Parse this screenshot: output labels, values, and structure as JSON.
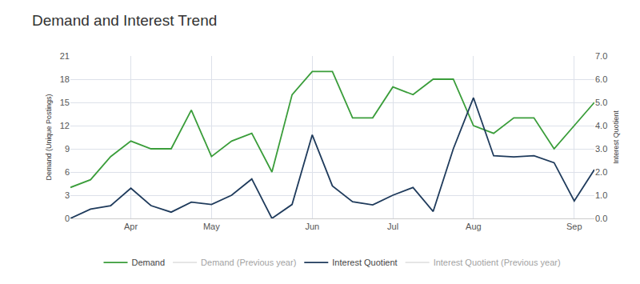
{
  "chart_data": {
    "type": "line",
    "title": "Demand and Interest Trend",
    "y_label": "Demand (Unique Postings)",
    "y2_label": "Interest Quotient",
    "categories": [
      null,
      null,
      null,
      "Apr",
      null,
      null,
      null,
      "May",
      null,
      null,
      null,
      null,
      "Jun",
      null,
      null,
      null,
      "Jul",
      null,
      null,
      null,
      "Aug",
      null,
      null,
      null,
      null,
      "Sep",
      null
    ],
    "series": [
      {
        "name": "Demand",
        "color": "#3a9d3a",
        "axis": "y",
        "values": [
          4,
          5,
          8,
          10,
          9,
          9,
          14,
          8,
          10,
          11,
          6,
          16,
          19,
          19,
          13,
          13,
          17,
          16,
          18,
          18,
          12,
          11,
          13,
          13,
          9,
          12,
          15
        ]
      },
      {
        "name": "Demand (Previous year)",
        "color": "#c8c8c8",
        "axis": "y",
        "values": [
          null,
          null,
          null,
          null,
          null,
          null,
          null,
          null,
          null,
          null,
          null,
          null,
          null,
          null,
          null,
          null,
          null,
          null,
          null,
          null,
          null,
          null,
          null,
          null,
          null,
          null,
          null
        ]
      },
      {
        "name": "Interest Quotient",
        "color": "#1f3b5c",
        "axis": "y2",
        "values": [
          0,
          0.4,
          0.55,
          1.3,
          0.55,
          0.27,
          0.7,
          0.6,
          1.0,
          1.7,
          0,
          0.6,
          3.6,
          1.4,
          0.72,
          0.58,
          1.0,
          1.33,
          0.3,
          3.0,
          5.2,
          2.7,
          2.65,
          2.7,
          2.4,
          0.75,
          2.1
        ]
      },
      {
        "name": "Interest Quotient (Previous year)",
        "color": "#c8c8c8",
        "axis": "y2",
        "values": [
          null,
          null,
          null,
          null,
          null,
          null,
          null,
          null,
          null,
          null,
          null,
          null,
          null,
          null,
          null,
          null,
          null,
          null,
          null,
          null,
          null,
          null,
          null,
          null,
          null,
          null,
          null
        ]
      }
    ],
    "ylim": [
      0,
      21
    ],
    "yticks": [
      0,
      3,
      6,
      9,
      12,
      15,
      18,
      21
    ],
    "y2lim": [
      0,
      7
    ],
    "y2ticks": [
      {
        "value": 0,
        "label": "0.0"
      },
      {
        "value": 1,
        "label": "1.0"
      },
      {
        "value": 2,
        "label": "2.0"
      },
      {
        "value": 3,
        "label": "3.0"
      },
      {
        "value": 4,
        "label": "4.0"
      },
      {
        "value": 5,
        "label": "5.0"
      },
      {
        "value": 6,
        "label": "6.0"
      },
      {
        "value": 7,
        "label": "7.0"
      }
    ],
    "grid": true,
    "legend": "bottom"
  }
}
